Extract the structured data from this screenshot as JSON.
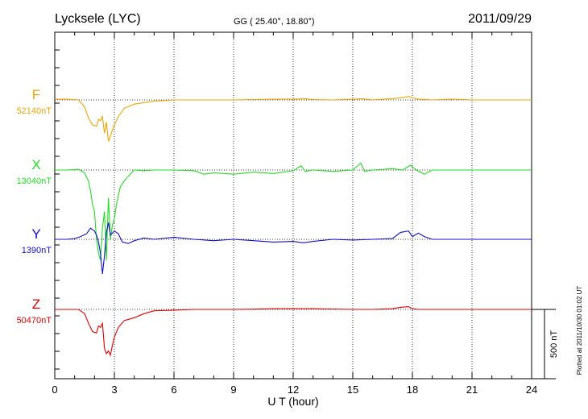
{
  "chart_data": {
    "type": "line",
    "title": "Lycksele (LYC)",
    "subtitle": "GG ( 25.40°,  18.80°)",
    "date": "2011/09/29",
    "xlabel": "U T (hour)",
    "xlim": [
      0,
      24
    ],
    "xticks": [
      "0",
      "3",
      "6",
      "9",
      "12",
      "15",
      "18",
      "21",
      "24"
    ],
    "scale_label": "500 nT",
    "scale_nT": 500,
    "plotted_note": "Plotted at 2011/10/30 01:02 UT",
    "grid": "vertical dotted at 3-hour ticks",
    "series": [
      {
        "name": "F",
        "baseline_label": "52140nT",
        "color": "#f0a500",
        "x": [
          0,
          0.6,
          1.2,
          1.5,
          1.7,
          1.9,
          2.1,
          2.2,
          2.3,
          2.4,
          2.5,
          2.6,
          2.7,
          2.8,
          2.9,
          3.0,
          3.2,
          3.5,
          4.0,
          4.5,
          5.0,
          5.5,
          6.0,
          7,
          8,
          9,
          10,
          11,
          12,
          12.6,
          13,
          14,
          15,
          15.5,
          16,
          17,
          17.4,
          17.8,
          18.0,
          18.3,
          19,
          20,
          21,
          22,
          23,
          24
        ],
        "y": [
          5,
          5,
          0,
          -50,
          -130,
          -180,
          -190,
          -140,
          -150,
          -120,
          -240,
          -160,
          -300,
          -260,
          -220,
          -180,
          -120,
          -60,
          -30,
          -20,
          -8,
          -5,
          0,
          0,
          0,
          0,
          3,
          5,
          5,
          8,
          3,
          0,
          5,
          8,
          0,
          10,
          15,
          25,
          15,
          5,
          0,
          5,
          0,
          0,
          0,
          0
        ]
      },
      {
        "name": "X",
        "baseline_label": "13040nT",
        "color": "#22dd22",
        "x": [
          0,
          0.6,
          1.2,
          1.5,
          1.7,
          1.8,
          1.9,
          2.0,
          2.1,
          2.2,
          2.3,
          2.4,
          2.5,
          2.6,
          2.7,
          2.8,
          2.9,
          3.0,
          3.1,
          3.3,
          3.6,
          4.0,
          4.5,
          5.0,
          6.0,
          7.0,
          7.5,
          8.0,
          9.0,
          10.0,
          11.0,
          12.0,
          12.4,
          12.6,
          13.0,
          14.0,
          15.0,
          15.4,
          15.6,
          16.0,
          17.0,
          17.5,
          17.9,
          18.2,
          18.6,
          19.0,
          20.0,
          21.0,
          22.0,
          24.0
        ],
        "y": [
          0,
          0,
          5,
          -20,
          -80,
          -150,
          -250,
          -300,
          -500,
          -600,
          -650,
          -420,
          -300,
          -650,
          -200,
          -500,
          -400,
          -350,
          -250,
          -120,
          -60,
          0,
          -5,
          0,
          0,
          -5,
          -30,
          -20,
          -30,
          -15,
          -25,
          -5,
          30,
          -10,
          0,
          -10,
          0,
          50,
          -10,
          0,
          10,
          0,
          35,
          0,
          -30,
          0,
          0,
          0,
          0,
          0
        ]
      },
      {
        "name": "Y",
        "baseline_label": "1390nT",
        "color": "#1010cc",
        "x": [
          0,
          0.6,
          1.0,
          1.3,
          1.6,
          1.8,
          2.0,
          2.1,
          2.2,
          2.3,
          2.4,
          2.5,
          2.6,
          2.7,
          2.8,
          3.0,
          3.2,
          3.4,
          3.7,
          4.0,
          4.5,
          5.0,
          6.0,
          7.0,
          8.0,
          9.0,
          10.0,
          11.0,
          12.0,
          12.5,
          13.0,
          14.0,
          15.0,
          16.0,
          17.0,
          17.4,
          17.8,
          18.0,
          18.3,
          18.6,
          19.0,
          20.0,
          21.0,
          22.0,
          23.0,
          24.0
        ],
        "y": [
          0,
          0,
          5,
          20,
          40,
          80,
          60,
          30,
          -20,
          -100,
          -250,
          -120,
          50,
          120,
          30,
          60,
          40,
          -20,
          -30,
          -10,
          10,
          0,
          15,
          0,
          -10,
          0,
          -10,
          -20,
          -15,
          -25,
          -15,
          0,
          -5,
          0,
          5,
          50,
          60,
          20,
          45,
          20,
          0,
          0,
          0,
          0,
          0,
          0
        ]
      },
      {
        "name": "Z",
        "baseline_label": "50470nT",
        "color": "#dd0000",
        "x": [
          0,
          0.6,
          1.2,
          1.5,
          1.7,
          1.9,
          2.1,
          2.2,
          2.3,
          2.4,
          2.5,
          2.6,
          2.7,
          2.8,
          2.9,
          3.0,
          3.2,
          3.5,
          4.0,
          4.5,
          5.0,
          6.0,
          7.0,
          8.0,
          9.0,
          10.0,
          11.0,
          12.0,
          13.0,
          14.0,
          15.0,
          16.0,
          17.0,
          17.4,
          17.8,
          18.0,
          18.3,
          19.0,
          20.0,
          21.0,
          22.0,
          23.0,
          24.0
        ],
        "y": [
          0,
          0,
          0,
          -30,
          -100,
          -160,
          -170,
          -120,
          -130,
          -100,
          -280,
          -320,
          -300,
          -330,
          -260,
          -200,
          -130,
          -80,
          -60,
          -30,
          -10,
          -5,
          0,
          0,
          0,
          2,
          5,
          5,
          5,
          3,
          0,
          0,
          5,
          15,
          20,
          5,
          0,
          0,
          0,
          0,
          0,
          0,
          0
        ]
      }
    ]
  }
}
